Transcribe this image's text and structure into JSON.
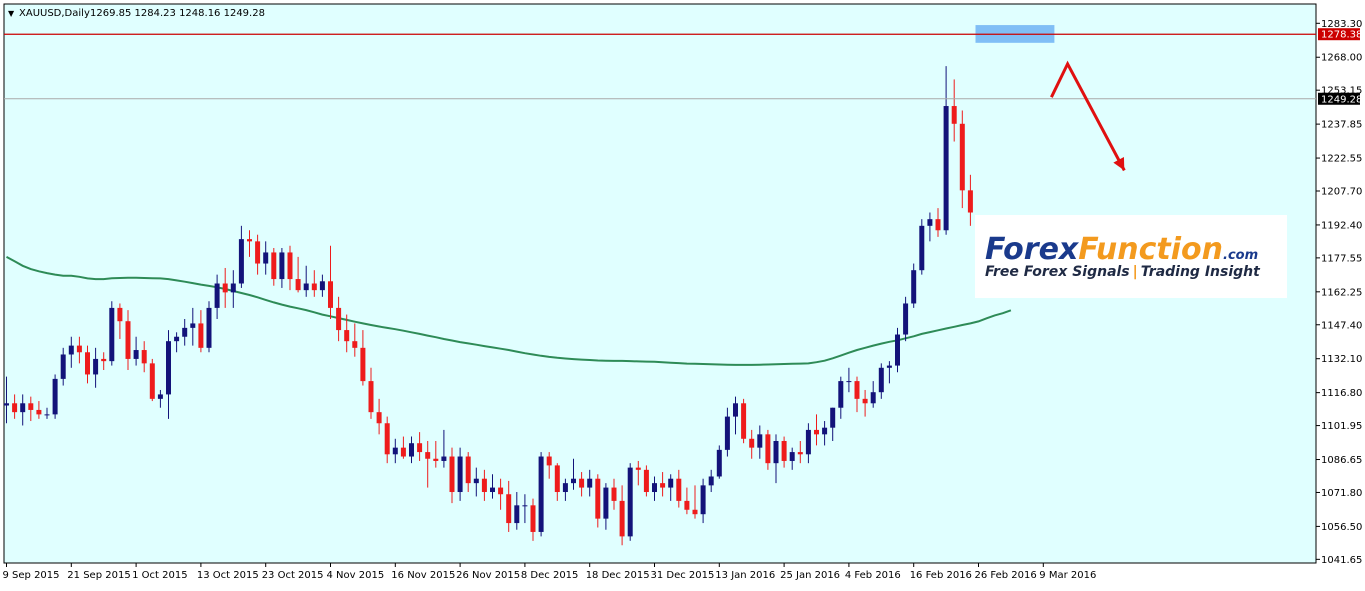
{
  "window": {
    "symbol_title": "XAUUSD,Daily",
    "ohlc": "1269.85 1284.23 1248.16 1249.28",
    "dropdown_glyph": "▼"
  },
  "colors": {
    "background": "#e0ffff",
    "bull_body": "#13137a",
    "bear_body": "#ee1c1c",
    "ma_line": "#2e8b57",
    "resistance_line": "#cc0000",
    "price_line": "#a9a9a9",
    "resistance_zone": "#6fb3f5",
    "arrow": "#e01010"
  },
  "watermark": {
    "brand_a": "Forex",
    "brand_b": "Function",
    "suffix": ".com",
    "tagline_a": "Free Forex Signals",
    "tagline_sep": "|",
    "tagline_b": "Trading Insight"
  },
  "chart_data": {
    "type": "candlestick",
    "symbol": "XAUUSD",
    "timeframe": "Daily",
    "ylim": [
      1040,
      1292
    ],
    "y_ticks": [
      1283.3,
      1268.0,
      1253.15,
      1237.85,
      1222.55,
      1207.7,
      1192.4,
      1177.55,
      1162.25,
      1147.4,
      1132.1,
      1116.8,
      1101.95,
      1086.65,
      1071.8,
      1056.5,
      1041.65
    ],
    "y_tick_labels": [
      "1283.30",
      "1268.00",
      "1253.15",
      "1237.85",
      "1222.55",
      "1207.70",
      "1192.40",
      "1177.55",
      "1162.25",
      "1147.40",
      "1132.10",
      "1116.80",
      "1101.95",
      "1086.65",
      "1071.80",
      "1056.50",
      "1041.65"
    ],
    "x_tick_labels": [
      "9 Sep 2015",
      "21 Sep 2015",
      "1 Oct 2015",
      "13 Oct 2015",
      "23 Oct 2015",
      "4 Nov 2015",
      "16 Nov 2015",
      "26 Nov 2015",
      "8 Dec 2015",
      "18 Dec 2015",
      "31 Dec 2015",
      "13 Jan 2016",
      "25 Jan 2016",
      "4 Feb 2016",
      "16 Feb 2016",
      "26 Feb 2016",
      "9 Mar 2016"
    ],
    "x_tick_bar_index": [
      0,
      8,
      16,
      24,
      32,
      40,
      48,
      56,
      64,
      72,
      80,
      88,
      96,
      104,
      112,
      120,
      128
    ],
    "resistance_level": 1278.38,
    "resistance_label": "1278.38",
    "current_price": 1249.28,
    "current_price_label": "1249.28",
    "resistance_zone": {
      "from_bar": 120,
      "to_bar": 129,
      "low": 1274.5,
      "high": 1282.5
    },
    "ma": {
      "name": "",
      "values": [
        1178,
        1176,
        1174,
        1172.5,
        1171.5,
        1170.7,
        1170,
        1169.5,
        1169.5,
        1169,
        1168.3,
        1168,
        1168,
        1168.4,
        1168.5,
        1168.6,
        1168.6,
        1168.5,
        1168.4,
        1168.3,
        1168,
        1167.4,
        1166.8,
        1166.2,
        1165.5,
        1164.9,
        1164.3,
        1163.5,
        1162.6,
        1161.7,
        1160.8,
        1159.8,
        1158.6,
        1157.5,
        1156.5,
        1155.6,
        1154.8,
        1154,
        1153,
        1152,
        1151.2,
        1150.4,
        1149.6,
        1148.8,
        1148,
        1147.3,
        1146.6,
        1146,
        1145.4,
        1144.7,
        1144,
        1143.3,
        1142.5,
        1141.8,
        1141,
        1140.3,
        1139.6,
        1139,
        1138.4,
        1137.8,
        1137.2,
        1136.6,
        1136,
        1135.3,
        1134.6,
        1134,
        1133.4,
        1132.9,
        1132.5,
        1132.2,
        1131.9,
        1131.7,
        1131.5,
        1131.3,
        1131.2,
        1131.1,
        1131.1,
        1131,
        1130.9,
        1130.8,
        1130.7,
        1130.5,
        1130.3,
        1130.1,
        1129.9,
        1129.8,
        1129.7,
        1129.6,
        1129.5,
        1129.4,
        1129.3,
        1129.3,
        1129.3,
        1129.4,
        1129.5,
        1129.6,
        1129.7,
        1129.8,
        1129.9,
        1130,
        1130.5,
        1131.2,
        1132.3,
        1133.5,
        1134.8,
        1136,
        1137,
        1138,
        1138.9,
        1139.7,
        1140.4,
        1141.3,
        1142.2,
        1143.3,
        1144.1,
        1144.9,
        1145.7,
        1146.5,
        1147.3,
        1148,
        1148.9,
        1150.3,
        1151.6,
        1152.6,
        1153.9
      ]
    },
    "projection_arrow": [
      {
        "bar": 129,
        "price": 1250
      },
      {
        "bar": 131,
        "price": 1265
      },
      {
        "bar": 138,
        "price": 1217
      }
    ],
    "candles": [
      {
        "o": 1111,
        "h": 1124,
        "l": 1103,
        "c": 1112
      },
      {
        "o": 1112,
        "h": 1116,
        "l": 1105,
        "c": 1108
      },
      {
        "o": 1108,
        "h": 1116,
        "l": 1102,
        "c": 1112
      },
      {
        "o": 1112,
        "h": 1115,
        "l": 1104,
        "c": 1109
      },
      {
        "o": 1109,
        "h": 1113,
        "l": 1105,
        "c": 1107
      },
      {
        "o": 1107,
        "h": 1110,
        "l": 1105,
        "c": 1107
      },
      {
        "o": 1107,
        "h": 1125,
        "l": 1105,
        "c": 1123
      },
      {
        "o": 1123,
        "h": 1137,
        "l": 1120,
        "c": 1134
      },
      {
        "o": 1134,
        "h": 1142,
        "l": 1128,
        "c": 1138
      },
      {
        "o": 1138,
        "h": 1142,
        "l": 1130,
        "c": 1135
      },
      {
        "o": 1135,
        "h": 1138,
        "l": 1121,
        "c": 1125
      },
      {
        "o": 1125,
        "h": 1137,
        "l": 1119,
        "c": 1132
      },
      {
        "o": 1132,
        "h": 1135,
        "l": 1127,
        "c": 1131
      },
      {
        "o": 1131,
        "h": 1158,
        "l": 1129,
        "c": 1155
      },
      {
        "o": 1155,
        "h": 1157,
        "l": 1141,
        "c": 1149
      },
      {
        "o": 1149,
        "h": 1154,
        "l": 1127,
        "c": 1132
      },
      {
        "o": 1132,
        "h": 1142,
        "l": 1129,
        "c": 1136
      },
      {
        "o": 1136,
        "h": 1140,
        "l": 1126,
        "c": 1130
      },
      {
        "o": 1130,
        "h": 1132,
        "l": 1113,
        "c": 1114
      },
      {
        "o": 1114,
        "h": 1118,
        "l": 1110,
        "c": 1116
      },
      {
        "o": 1116,
        "h": 1145,
        "l": 1105,
        "c": 1140
      },
      {
        "o": 1140,
        "h": 1144,
        "l": 1135,
        "c": 1142
      },
      {
        "o": 1142,
        "h": 1150,
        "l": 1138,
        "c": 1146
      },
      {
        "o": 1146,
        "h": 1155,
        "l": 1138,
        "c": 1148
      },
      {
        "o": 1148,
        "h": 1154,
        "l": 1135,
        "c": 1137
      },
      {
        "o": 1137,
        "h": 1158,
        "l": 1135,
        "c": 1155
      },
      {
        "o": 1155,
        "h": 1170,
        "l": 1150,
        "c": 1166
      },
      {
        "o": 1166,
        "h": 1173,
        "l": 1155,
        "c": 1162
      },
      {
        "o": 1162,
        "h": 1172,
        "l": 1155,
        "c": 1166
      },
      {
        "o": 1166,
        "h": 1192,
        "l": 1164,
        "c": 1186
      },
      {
        "o": 1186,
        "h": 1190,
        "l": 1178,
        "c": 1185
      },
      {
        "o": 1185,
        "h": 1188,
        "l": 1170,
        "c": 1175
      },
      {
        "o": 1175,
        "h": 1185,
        "l": 1170,
        "c": 1180
      },
      {
        "o": 1180,
        "h": 1182,
        "l": 1165,
        "c": 1168
      },
      {
        "o": 1168,
        "h": 1182,
        "l": 1164,
        "c": 1180
      },
      {
        "o": 1180,
        "h": 1183,
        "l": 1163,
        "c": 1168
      },
      {
        "o": 1168,
        "h": 1178,
        "l": 1162,
        "c": 1163
      },
      {
        "o": 1163,
        "h": 1174,
        "l": 1160,
        "c": 1166
      },
      {
        "o": 1166,
        "h": 1172,
        "l": 1160,
        "c": 1163
      },
      {
        "o": 1163,
        "h": 1170,
        "l": 1160,
        "c": 1167
      },
      {
        "o": 1167,
        "h": 1183,
        "l": 1150,
        "c": 1155
      },
      {
        "o": 1155,
        "h": 1160,
        "l": 1140,
        "c": 1145
      },
      {
        "o": 1145,
        "h": 1152,
        "l": 1135,
        "c": 1140
      },
      {
        "o": 1140,
        "h": 1148,
        "l": 1133,
        "c": 1137
      },
      {
        "o": 1137,
        "h": 1145,
        "l": 1120,
        "c": 1122
      },
      {
        "o": 1122,
        "h": 1128,
        "l": 1105,
        "c": 1108
      },
      {
        "o": 1108,
        "h": 1114,
        "l": 1098,
        "c": 1103
      },
      {
        "o": 1103,
        "h": 1106,
        "l": 1085,
        "c": 1089
      },
      {
        "o": 1089,
        "h": 1096,
        "l": 1085,
        "c": 1092
      },
      {
        "o": 1092,
        "h": 1097,
        "l": 1087,
        "c": 1088
      },
      {
        "o": 1088,
        "h": 1097,
        "l": 1085,
        "c": 1094
      },
      {
        "o": 1094,
        "h": 1099,
        "l": 1086,
        "c": 1090
      },
      {
        "o": 1090,
        "h": 1095,
        "l": 1074,
        "c": 1087
      },
      {
        "o": 1087,
        "h": 1095,
        "l": 1083,
        "c": 1086
      },
      {
        "o": 1086,
        "h": 1100,
        "l": 1083,
        "c": 1088
      },
      {
        "o": 1088,
        "h": 1092,
        "l": 1067,
        "c": 1072
      },
      {
        "o": 1072,
        "h": 1092,
        "l": 1068,
        "c": 1088
      },
      {
        "o": 1088,
        "h": 1090,
        "l": 1072,
        "c": 1076
      },
      {
        "o": 1076,
        "h": 1083,
        "l": 1070,
        "c": 1078
      },
      {
        "o": 1078,
        "h": 1082,
        "l": 1068,
        "c": 1072
      },
      {
        "o": 1072,
        "h": 1080,
        "l": 1069,
        "c": 1074
      },
      {
        "o": 1074,
        "h": 1078,
        "l": 1064,
        "c": 1071
      },
      {
        "o": 1071,
        "h": 1077,
        "l": 1054,
        "c": 1058
      },
      {
        "o": 1058,
        "h": 1072,
        "l": 1055,
        "c": 1066
      },
      {
        "o": 1066,
        "h": 1071,
        "l": 1058,
        "c": 1066
      },
      {
        "o": 1066,
        "h": 1069,
        "l": 1050,
        "c": 1054
      },
      {
        "o": 1054,
        "h": 1090,
        "l": 1052,
        "c": 1088
      },
      {
        "o": 1088,
        "h": 1090,
        "l": 1078,
        "c": 1084
      },
      {
        "o": 1084,
        "h": 1085,
        "l": 1068,
        "c": 1072
      },
      {
        "o": 1072,
        "h": 1078,
        "l": 1068,
        "c": 1076
      },
      {
        "o": 1076,
        "h": 1087,
        "l": 1073,
        "c": 1078
      },
      {
        "o": 1078,
        "h": 1081,
        "l": 1070,
        "c": 1074
      },
      {
        "o": 1074,
        "h": 1082,
        "l": 1070,
        "c": 1078
      },
      {
        "o": 1078,
        "h": 1080,
        "l": 1056,
        "c": 1060
      },
      {
        "o": 1060,
        "h": 1076,
        "l": 1055,
        "c": 1074
      },
      {
        "o": 1074,
        "h": 1078,
        "l": 1064,
        "c": 1068
      },
      {
        "o": 1068,
        "h": 1075,
        "l": 1048,
        "c": 1052
      },
      {
        "o": 1052,
        "h": 1085,
        "l": 1050,
        "c": 1083
      },
      {
        "o": 1083,
        "h": 1086,
        "l": 1075,
        "c": 1082
      },
      {
        "o": 1082,
        "h": 1084,
        "l": 1070,
        "c": 1072
      },
      {
        "o": 1072,
        "h": 1079,
        "l": 1068,
        "c": 1076
      },
      {
        "o": 1076,
        "h": 1081,
        "l": 1070,
        "c": 1074
      },
      {
        "o": 1074,
        "h": 1080,
        "l": 1068,
        "c": 1078
      },
      {
        "o": 1078,
        "h": 1082,
        "l": 1065,
        "c": 1068
      },
      {
        "o": 1068,
        "h": 1074,
        "l": 1062,
        "c": 1064
      },
      {
        "o": 1064,
        "h": 1075,
        "l": 1060,
        "c": 1062
      },
      {
        "o": 1062,
        "h": 1078,
        "l": 1058,
        "c": 1075
      },
      {
        "o": 1075,
        "h": 1082,
        "l": 1072,
        "c": 1079
      },
      {
        "o": 1079,
        "h": 1093,
        "l": 1078,
        "c": 1091
      },
      {
        "o": 1091,
        "h": 1110,
        "l": 1088,
        "c": 1106
      },
      {
        "o": 1106,
        "h": 1115,
        "l": 1098,
        "c": 1112
      },
      {
        "o": 1112,
        "h": 1114,
        "l": 1094,
        "c": 1096
      },
      {
        "o": 1096,
        "h": 1100,
        "l": 1087,
        "c": 1092
      },
      {
        "o": 1092,
        "h": 1102,
        "l": 1087,
        "c": 1098
      },
      {
        "o": 1098,
        "h": 1100,
        "l": 1082,
        "c": 1085
      },
      {
        "o": 1085,
        "h": 1098,
        "l": 1076,
        "c": 1095
      },
      {
        "o": 1095,
        "h": 1097,
        "l": 1083,
        "c": 1086
      },
      {
        "o": 1086,
        "h": 1092,
        "l": 1082,
        "c": 1090
      },
      {
        "o": 1090,
        "h": 1095,
        "l": 1085,
        "c": 1089
      },
      {
        "o": 1089,
        "h": 1103,
        "l": 1085,
        "c": 1100
      },
      {
        "o": 1100,
        "h": 1107,
        "l": 1093,
        "c": 1098
      },
      {
        "o": 1098,
        "h": 1104,
        "l": 1093,
        "c": 1101
      },
      {
        "o": 1101,
        "h": 1110,
        "l": 1095,
        "c": 1110
      },
      {
        "o": 1110,
        "h": 1124,
        "l": 1105,
        "c": 1122
      },
      {
        "o": 1122,
        "h": 1128,
        "l": 1117,
        "c": 1122
      },
      {
        "o": 1122,
        "h": 1124,
        "l": 1108,
        "c": 1114
      },
      {
        "o": 1114,
        "h": 1118,
        "l": 1106,
        "c": 1112
      },
      {
        "o": 1112,
        "h": 1122,
        "l": 1110,
        "c": 1117
      },
      {
        "o": 1117,
        "h": 1130,
        "l": 1114,
        "c": 1128
      },
      {
        "o": 1128,
        "h": 1131,
        "l": 1121,
        "c": 1129
      },
      {
        "o": 1129,
        "h": 1146,
        "l": 1126,
        "c": 1143
      },
      {
        "o": 1143,
        "h": 1160,
        "l": 1140,
        "c": 1157
      },
      {
        "o": 1157,
        "h": 1175,
        "l": 1155,
        "c": 1172
      },
      {
        "o": 1172,
        "h": 1195,
        "l": 1170,
        "c": 1192
      },
      {
        "o": 1192,
        "h": 1198,
        "l": 1185,
        "c": 1195
      },
      {
        "o": 1195,
        "h": 1200,
        "l": 1187,
        "c": 1190
      },
      {
        "o": 1190,
        "h": 1264,
        "l": 1188,
        "c": 1246
      },
      {
        "o": 1246,
        "h": 1258,
        "l": 1230,
        "c": 1238
      },
      {
        "o": 1238,
        "h": 1244,
        "l": 1200,
        "c": 1208
      },
      {
        "o": 1208,
        "h": 1215,
        "l": 1192,
        "c": 1198
      }
    ]
  }
}
